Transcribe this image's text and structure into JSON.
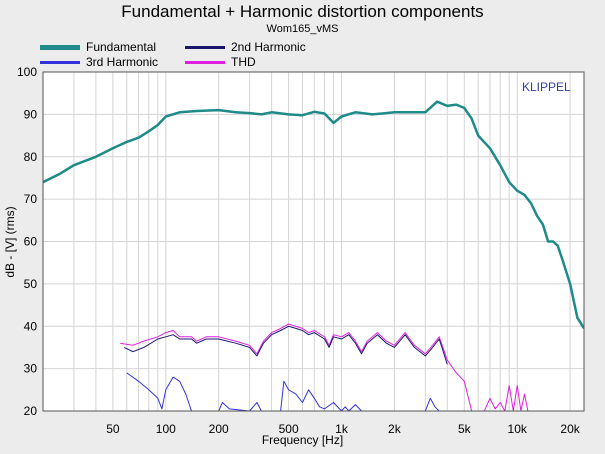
{
  "chart_data": {
    "type": "line",
    "title": "Fundamental + Harmonic distortion components",
    "subtitle": "Wom165_vMS",
    "xlabel": "Frequency [Hz]",
    "ylabel": "dB - [V] (rms)",
    "watermark": "KLIPPEL",
    "x_scale": "log",
    "xlim": [
      20,
      24000
    ],
    "ylim": [
      20,
      100
    ],
    "grid": true,
    "legend_position": "top-left",
    "x_ticks": [
      50,
      100,
      200,
      500,
      1000,
      2000,
      5000,
      10000,
      20000
    ],
    "x_tick_labels": [
      "50",
      "100",
      "200",
      "500",
      "1k",
      "2k",
      "5k",
      "10k",
      "20k"
    ],
    "y_ticks": [
      20,
      30,
      40,
      50,
      60,
      70,
      80,
      90,
      100
    ],
    "y_tick_labels": [
      "20",
      "30",
      "40",
      "50",
      "60",
      "70",
      "80",
      "90",
      "100"
    ],
    "series": [
      {
        "name": "Fundamental",
        "color": "#1f8a8a",
        "width": 2.5,
        "points": [
          [
            20,
            74
          ],
          [
            25,
            76
          ],
          [
            30,
            78
          ],
          [
            40,
            80
          ],
          [
            50,
            82
          ],
          [
            60,
            83.5
          ],
          [
            70,
            84.5
          ],
          [
            80,
            86
          ],
          [
            90,
            87.5
          ],
          [
            100,
            89.5
          ],
          [
            120,
            90.5
          ],
          [
            150,
            90.8
          ],
          [
            200,
            91
          ],
          [
            250,
            90.5
          ],
          [
            300,
            90.3
          ],
          [
            350,
            90
          ],
          [
            400,
            90.5
          ],
          [
            500,
            90
          ],
          [
            600,
            89.8
          ],
          [
            700,
            90.6
          ],
          [
            800,
            90.2
          ],
          [
            900,
            88
          ],
          [
            1000,
            89.5
          ],
          [
            1200,
            90.5
          ],
          [
            1500,
            90
          ],
          [
            2000,
            90.5
          ],
          [
            2500,
            90.5
          ],
          [
            3000,
            90.5
          ],
          [
            3500,
            93
          ],
          [
            4000,
            92
          ],
          [
            4500,
            92.3
          ],
          [
            5000,
            91.5
          ],
          [
            5500,
            89
          ],
          [
            6000,
            85
          ],
          [
            7000,
            82
          ],
          [
            8000,
            78
          ],
          [
            9000,
            74
          ],
          [
            10000,
            72
          ],
          [
            11000,
            71
          ],
          [
            12000,
            69
          ],
          [
            13000,
            66
          ],
          [
            14000,
            64
          ],
          [
            15000,
            60
          ],
          [
            16000,
            60
          ],
          [
            17000,
            59
          ],
          [
            18000,
            56
          ],
          [
            20000,
            50
          ],
          [
            22000,
            42
          ],
          [
            24000,
            39.5
          ]
        ]
      },
      {
        "name": "2nd Harmonic",
        "color": "#1a1570",
        "width": 1,
        "points": [
          [
            58,
            35
          ],
          [
            65,
            34
          ],
          [
            75,
            35
          ],
          [
            90,
            37
          ],
          [
            100,
            37.5
          ],
          [
            110,
            38
          ],
          [
            120,
            37
          ],
          [
            140,
            37
          ],
          [
            150,
            36
          ],
          [
            170,
            37
          ],
          [
            200,
            37
          ],
          [
            250,
            36
          ],
          [
            300,
            35
          ],
          [
            330,
            33
          ],
          [
            360,
            36
          ],
          [
            400,
            38
          ],
          [
            450,
            39
          ],
          [
            500,
            40
          ],
          [
            550,
            39.5
          ],
          [
            600,
            39
          ],
          [
            650,
            38
          ],
          [
            700,
            38.5
          ],
          [
            800,
            37
          ],
          [
            850,
            35
          ],
          [
            900,
            37.5
          ],
          [
            1000,
            37
          ],
          [
            1100,
            38
          ],
          [
            1200,
            36
          ],
          [
            1300,
            33.5
          ],
          [
            1400,
            36
          ],
          [
            1600,
            38
          ],
          [
            1800,
            36
          ],
          [
            2000,
            35
          ],
          [
            2300,
            38
          ],
          [
            2600,
            35
          ],
          [
            3000,
            33
          ],
          [
            3300,
            35
          ],
          [
            3600,
            37
          ],
          [
            4000,
            31
          ]
        ]
      },
      {
        "name": "3rd Harmonic",
        "color": "#3333dd",
        "width": 1,
        "points": [
          [
            60,
            29
          ],
          [
            70,
            27
          ],
          [
            80,
            25
          ],
          [
            90,
            23
          ],
          [
            95,
            20.5
          ],
          [
            100,
            25
          ],
          [
            110,
            28
          ],
          [
            120,
            27
          ],
          [
            130,
            24
          ],
          [
            140,
            20
          ],
          [
            200,
            20
          ],
          [
            210,
            22
          ],
          [
            230,
            20.5
          ],
          [
            300,
            20
          ],
          [
            330,
            22
          ],
          [
            350,
            20
          ],
          [
            450,
            20
          ],
          [
            470,
            27
          ],
          [
            500,
            25
          ],
          [
            550,
            24
          ],
          [
            600,
            22
          ],
          [
            650,
            25
          ],
          [
            700,
            23
          ],
          [
            750,
            21
          ],
          [
            800,
            20.5
          ],
          [
            900,
            22
          ],
          [
            1000,
            20
          ],
          [
            1050,
            21
          ],
          [
            1100,
            20
          ],
          [
            1200,
            21.5
          ],
          [
            1300,
            20
          ],
          [
            1500,
            20
          ],
          [
            3000,
            20
          ],
          [
            3200,
            23
          ],
          [
            3400,
            21
          ],
          [
            3600,
            20
          ]
        ]
      },
      {
        "name": "THD",
        "color": "#e020e0",
        "width": 1,
        "points": [
          [
            55,
            36
          ],
          [
            65,
            35.5
          ],
          [
            75,
            36.5
          ],
          [
            90,
            37.5
          ],
          [
            100,
            38.5
          ],
          [
            110,
            39
          ],
          [
            120,
            37.5
          ],
          [
            140,
            37.5
          ],
          [
            150,
            36.5
          ],
          [
            170,
            37.5
          ],
          [
            200,
            37.5
          ],
          [
            250,
            36.5
          ],
          [
            300,
            35.5
          ],
          [
            330,
            33.5
          ],
          [
            360,
            36.5
          ],
          [
            400,
            38.5
          ],
          [
            450,
            39.5
          ],
          [
            500,
            40.5
          ],
          [
            550,
            40
          ],
          [
            600,
            39.5
          ],
          [
            650,
            38.5
          ],
          [
            700,
            39
          ],
          [
            800,
            37.5
          ],
          [
            850,
            35.5
          ],
          [
            900,
            38
          ],
          [
            1000,
            37.5
          ],
          [
            1100,
            38.5
          ],
          [
            1200,
            36.5
          ],
          [
            1300,
            34
          ],
          [
            1400,
            36.5
          ],
          [
            1600,
            38.5
          ],
          [
            1800,
            36.5
          ],
          [
            2000,
            35.5
          ],
          [
            2300,
            38.5
          ],
          [
            2600,
            35.5
          ],
          [
            3000,
            33.5
          ],
          [
            3300,
            35.5
          ],
          [
            3600,
            37.5
          ],
          [
            4000,
            32
          ],
          [
            4500,
            29
          ],
          [
            5000,
            27
          ],
          [
            5500,
            20
          ],
          [
            6500,
            20
          ],
          [
            7000,
            23
          ],
          [
            7500,
            20.5
          ],
          [
            8000,
            22
          ],
          [
            8500,
            20
          ],
          [
            9000,
            26
          ],
          [
            9500,
            20
          ],
          [
            10000,
            26
          ],
          [
            10500,
            20
          ],
          [
            11000,
            24
          ],
          [
            11500,
            20
          ]
        ]
      }
    ]
  }
}
